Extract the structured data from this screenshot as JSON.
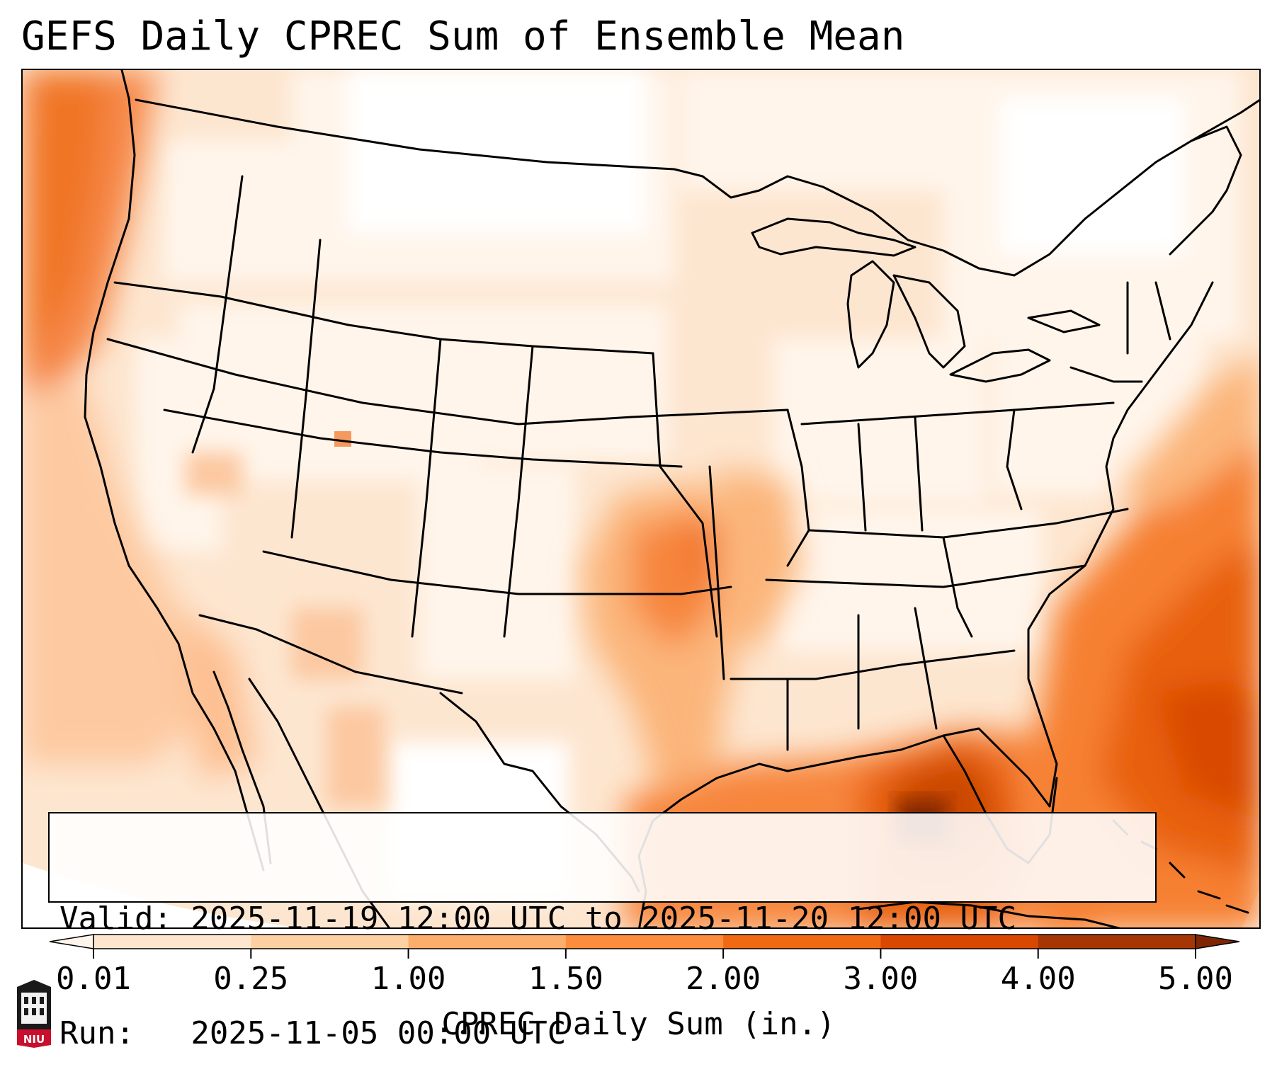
{
  "title": "GEFS Daily CPREC Sum of Ensemble Mean",
  "validity": {
    "valid_line": "Valid: 2025-11-19 12:00 UTC to 2025-11-20 12:00 UTC",
    "run_line": "Run:   2025-11-05 00:00 UTC"
  },
  "colorbar": {
    "label": "CPREC Daily Sum (in.)",
    "ticks": [
      "0.01",
      "0.25",
      "1.00",
      "1.50",
      "2.00",
      "3.00",
      "4.00",
      "5.00"
    ],
    "colors": [
      "#fff5eb",
      "#fee6ce",
      "#fdd0a2",
      "#fdae6b",
      "#fd8d3c",
      "#f16913",
      "#d94801",
      "#a63603",
      "#7f2704"
    ],
    "extend": "both"
  },
  "logo": {
    "text": "NIU",
    "name": "niu-logo"
  },
  "colors": {
    "border": "#000000",
    "background": "#ffffff"
  }
}
